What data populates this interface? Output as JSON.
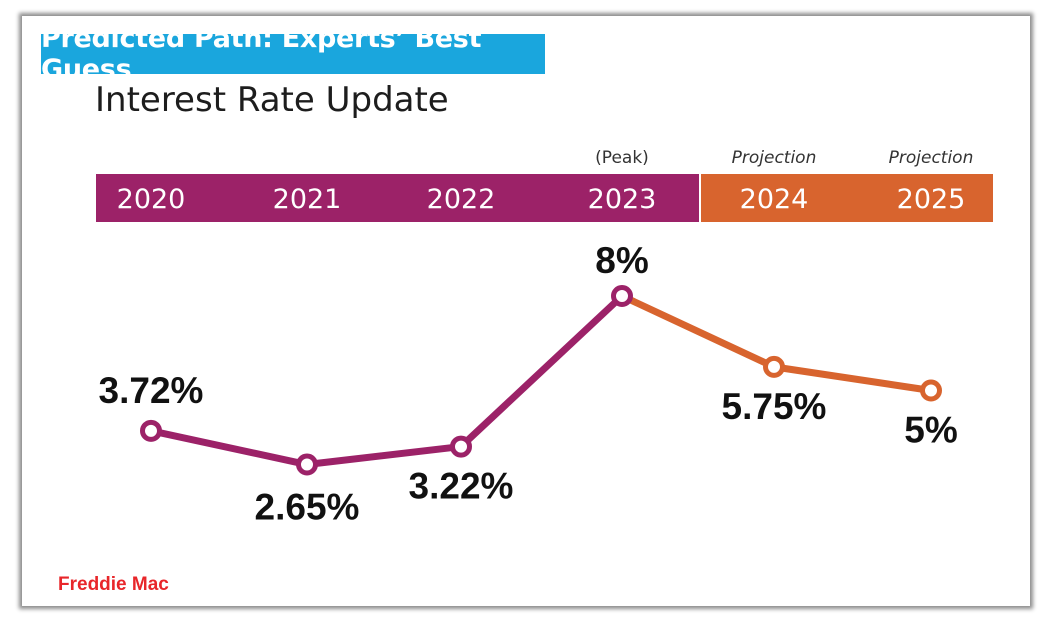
{
  "banner": {
    "label": "Predicted Path: Experts’ Best Guess",
    "bg": "#1aa6dd"
  },
  "title": "Interest Rate Update",
  "source": {
    "label": "Freddie Mac",
    "color": "#e8262a"
  },
  "colors": {
    "actual": "#9c2268",
    "projection": "#d8642e"
  },
  "chart_data": {
    "type": "line",
    "title": "Interest Rate Update",
    "categories": [
      "2020",
      "2021",
      "2022",
      "2023",
      "2024",
      "2025"
    ],
    "values": [
      3.72,
      2.65,
      3.22,
      8,
      5.75,
      5
    ],
    "data_labels": [
      "3.72%",
      "2.65%",
      "3.22%",
      "8%",
      "5.75%",
      "5%"
    ],
    "header_notes": [
      "",
      "",
      "",
      "(Peak)",
      "Projection",
      "Projection"
    ],
    "segments": [
      {
        "kind": "actual",
        "from": "2020",
        "to": "2023"
      },
      {
        "kind": "projection",
        "from": "2023",
        "to": "2025"
      }
    ],
    "xlabel": "",
    "ylabel": "",
    "grid": false,
    "legend": "none"
  }
}
